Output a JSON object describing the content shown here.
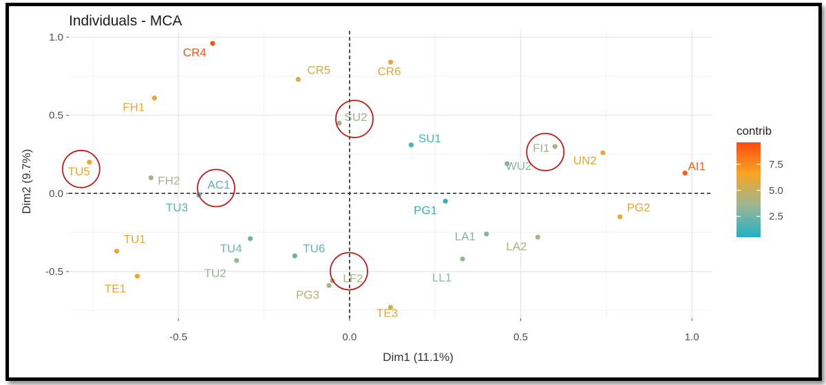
{
  "chart_data": {
    "type": "scatter",
    "title": "Individuals - MCA",
    "xlabel": "Dim1 (11.1%)",
    "ylabel": "Dim2 (9.7%)",
    "xlim": [
      -0.82,
      1.06
    ],
    "ylim": [
      -0.8,
      1.04
    ],
    "x_ticks": [
      -0.5,
      0.0,
      0.5,
      1.0
    ],
    "x_tick_labels": [
      "-0.5",
      "0.0",
      "0.5",
      "1.0"
    ],
    "y_ticks": [
      -0.5,
      0.0,
      0.5,
      1.0
    ],
    "y_tick_labels": [
      "-0.5",
      "0.0",
      "0.5",
      "1.0"
    ],
    "grid": true,
    "reference_lines": {
      "x": 0,
      "y": 0,
      "style": "dashed"
    },
    "legend": {
      "title": "contrib",
      "placement": "right",
      "range": [
        0.5,
        9.6
      ],
      "ticks": [
        2.5,
        5.0,
        7.5
      ],
      "tick_labels": [
        "2.5",
        "5.0",
        "7.5"
      ],
      "colors": [
        "#21b1c4",
        "#9db596",
        "#f5a623",
        "#ff4a10"
      ]
    },
    "points": [
      {
        "label": "CR4",
        "x": -0.4,
        "y": 0.96,
        "contrib": 9.3
      },
      {
        "label": "CR5",
        "x": -0.15,
        "y": 0.73,
        "contrib": 5.5
      },
      {
        "label": "CR6",
        "x": 0.12,
        "y": 0.84,
        "contrib": 5.8
      },
      {
        "label": "FH1",
        "x": -0.57,
        "y": 0.61,
        "contrib": 6.0
      },
      {
        "label": "SU2",
        "x": -0.03,
        "y": 0.45,
        "contrib": 3.6
      },
      {
        "label": "SU1",
        "x": 0.18,
        "y": 0.31,
        "contrib": 1.5
      },
      {
        "label": "FI1",
        "x": 0.6,
        "y": 0.3,
        "contrib": 4.0
      },
      {
        "label": "WU2",
        "x": 0.46,
        "y": 0.19,
        "contrib": 3.1
      },
      {
        "label": "UN2",
        "x": 0.74,
        "y": 0.26,
        "contrib": 6.2
      },
      {
        "label": "AI1",
        "x": 0.98,
        "y": 0.13,
        "contrib": 9.0
      },
      {
        "label": "TU5",
        "x": -0.76,
        "y": 0.2,
        "contrib": 6.3
      },
      {
        "label": "FH2",
        "x": -0.58,
        "y": 0.1,
        "contrib": 3.9
      },
      {
        "label": "AC1",
        "x": -0.44,
        "y": -0.01,
        "contrib": 2.0
      },
      {
        "label": "TU3",
        "x": -0.44,
        "y": -0.01,
        "contrib": 2.0
      },
      {
        "label": "PG1",
        "x": 0.28,
        "y": -0.05,
        "contrib": 1.0
      },
      {
        "label": "PG2",
        "x": 0.79,
        "y": -0.15,
        "contrib": 6.0
      },
      {
        "label": "TU1",
        "x": -0.68,
        "y": -0.37,
        "contrib": 6.2
      },
      {
        "label": "TU4",
        "x": -0.29,
        "y": -0.29,
        "contrib": 2.4
      },
      {
        "label": "TU6",
        "x": -0.16,
        "y": -0.4,
        "contrib": 2.2
      },
      {
        "label": "LA1",
        "x": 0.4,
        "y": -0.26,
        "contrib": 3.0
      },
      {
        "label": "LA2",
        "x": 0.55,
        "y": -0.28,
        "contrib": 4.0
      },
      {
        "label": "TU2",
        "x": -0.33,
        "y": -0.43,
        "contrib": 3.4
      },
      {
        "label": "LL1",
        "x": 0.33,
        "y": -0.42,
        "contrib": 3.3
      },
      {
        "label": "LF2",
        "x": -0.05,
        "y": -0.56,
        "contrib": 4.0
      },
      {
        "label": "PG3",
        "x": -0.06,
        "y": -0.59,
        "contrib": 4.2
      },
      {
        "label": "TE1",
        "x": -0.62,
        "y": -0.53,
        "contrib": 6.4
      },
      {
        "label": "TE3",
        "x": 0.12,
        "y": -0.73,
        "contrib": 5.6
      }
    ],
    "annotations": {
      "circled_points": [
        "SU2",
        "FI1",
        "TU5",
        "AC1",
        "LF2"
      ],
      "circle_color": "#c0181a"
    }
  }
}
